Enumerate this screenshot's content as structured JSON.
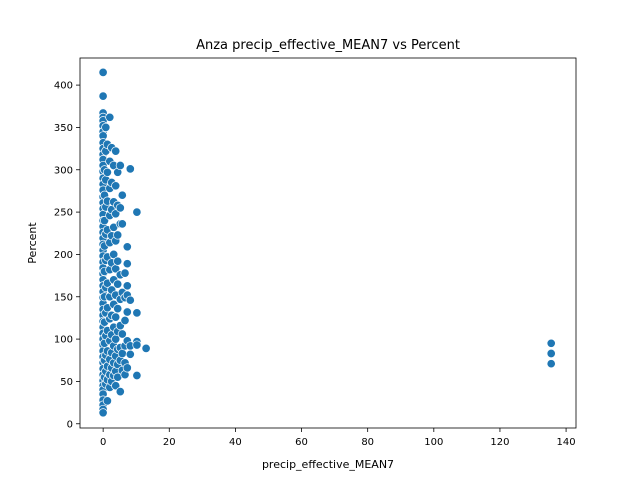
{
  "chart_data": {
    "type": "scatter",
    "title": "Anza precip_effective_MEAN7 vs Percent",
    "xlabel": "precip_effective_MEAN7",
    "ylabel": "Percent",
    "xlim": [
      -7,
      143
    ],
    "ylim": [
      -5,
      432
    ],
    "xticks": [
      0,
      20,
      40,
      60,
      80,
      100,
      120,
      140
    ],
    "yticks": [
      0,
      50,
      100,
      150,
      200,
      250,
      300,
      350,
      400
    ],
    "grid": false,
    "legend": "none",
    "color": "#1f77b4",
    "points": [
      [
        0,
        415
      ],
      [
        0,
        387
      ],
      [
        0,
        367
      ],
      [
        0,
        362
      ],
      [
        0,
        358
      ],
      [
        0,
        352
      ],
      [
        0,
        345
      ],
      [
        0,
        340
      ],
      [
        0,
        332
      ],
      [
        0,
        325
      ],
      [
        0,
        318
      ],
      [
        0,
        312
      ],
      [
        0,
        305
      ],
      [
        0,
        298
      ],
      [
        0,
        290
      ],
      [
        0,
        283
      ],
      [
        0,
        276
      ],
      [
        0,
        268
      ],
      [
        0,
        261
      ],
      [
        0,
        254
      ],
      [
        0,
        247
      ],
      [
        0,
        240
      ],
      [
        0,
        233
      ],
      [
        0,
        226
      ],
      [
        0,
        219
      ],
      [
        0,
        212
      ],
      [
        0,
        205
      ],
      [
        0,
        198
      ],
      [
        0,
        191
      ],
      [
        0,
        184
      ],
      [
        0,
        177
      ],
      [
        0,
        170
      ],
      [
        0,
        163
      ],
      [
        0,
        156
      ],
      [
        0,
        149
      ],
      [
        0,
        142
      ],
      [
        0,
        135
      ],
      [
        0,
        128
      ],
      [
        0,
        121
      ],
      [
        0,
        114
      ],
      [
        0,
        107
      ],
      [
        0,
        100
      ],
      [
        0,
        93
      ],
      [
        0,
        86
      ],
      [
        0,
        79
      ],
      [
        0,
        72
      ],
      [
        0,
        65
      ],
      [
        0,
        58
      ],
      [
        0,
        51
      ],
      [
        0,
        45
      ],
      [
        0,
        40
      ],
      [
        0,
        35
      ],
      [
        0,
        28
      ],
      [
        0,
        22
      ],
      [
        0,
        17
      ],
      [
        0,
        13
      ],
      [
        0.4,
        300
      ],
      [
        0.4,
        270
      ],
      [
        0.4,
        240
      ],
      [
        0.4,
        210
      ],
      [
        0.4,
        180
      ],
      [
        0.4,
        150
      ],
      [
        0.4,
        120
      ],
      [
        0.4,
        95
      ],
      [
        0.4,
        75
      ],
      [
        0.4,
        55
      ],
      [
        0.8,
        350
      ],
      [
        0.8,
        322
      ],
      [
        0.8,
        288
      ],
      [
        0.8,
        256
      ],
      [
        0.8,
        224
      ],
      [
        0.8,
        193
      ],
      [
        0.8,
        161
      ],
      [
        0.8,
        131
      ],
      [
        0.8,
        104
      ],
      [
        0.8,
        81
      ],
      [
        0.8,
        62
      ],
      [
        0.8,
        47
      ],
      [
        1.3,
        330
      ],
      [
        1.3,
        297
      ],
      [
        1.3,
        263
      ],
      [
        1.3,
        229
      ],
      [
        1.3,
        197
      ],
      [
        1.3,
        166
      ],
      [
        1.3,
        137
      ],
      [
        1.3,
        110
      ],
      [
        1.3,
        86
      ],
      [
        1.3,
        68
      ],
      [
        1.3,
        52
      ],
      [
        1.3,
        27
      ],
      [
        2,
        362
      ],
      [
        2,
        310
      ],
      [
        2,
        278
      ],
      [
        2,
        246
      ],
      [
        2,
        214
      ],
      [
        2,
        182
      ],
      [
        2,
        150
      ],
      [
        2,
        124
      ],
      [
        2,
        98
      ],
      [
        2,
        76
      ],
      [
        2,
        58
      ],
      [
        2,
        43
      ],
      [
        2.6,
        326
      ],
      [
        2.6,
        285
      ],
      [
        2.6,
        253
      ],
      [
        2.6,
        222
      ],
      [
        2.6,
        190
      ],
      [
        2.6,
        158
      ],
      [
        2.6,
        128
      ],
      [
        2.6,
        105
      ],
      [
        2.6,
        84
      ],
      [
        2.6,
        66
      ],
      [
        2.6,
        50
      ],
      [
        3.2,
        305
      ],
      [
        3.2,
        262
      ],
      [
        3.2,
        232
      ],
      [
        3.2,
        200
      ],
      [
        3.2,
        170
      ],
      [
        3.2,
        141
      ],
      [
        3.2,
        114
      ],
      [
        3.2,
        92
      ],
      [
        3.2,
        72
      ],
      [
        3.2,
        57
      ],
      [
        3.8,
        322
      ],
      [
        3.8,
        281
      ],
      [
        3.8,
        248
      ],
      [
        3.8,
        216
      ],
      [
        3.8,
        183
      ],
      [
        3.8,
        152
      ],
      [
        3.8,
        126
      ],
      [
        3.8,
        100
      ],
      [
        3.8,
        80
      ],
      [
        3.8,
        62
      ],
      [
        3.8,
        45
      ],
      [
        4.4,
        297
      ],
      [
        4.4,
        258
      ],
      [
        4.4,
        223
      ],
      [
        4.4,
        192
      ],
      [
        4.4,
        165
      ],
      [
        4.4,
        136
      ],
      [
        4.4,
        109
      ],
      [
        4.4,
        88
      ],
      [
        4.4,
        70
      ],
      [
        4.4,
        55
      ],
      [
        5.2,
        305
      ],
      [
        5.2,
        255
      ],
      [
        5.2,
        236
      ],
      [
        5.2,
        176
      ],
      [
        5.2,
        147
      ],
      [
        5.2,
        116
      ],
      [
        5.2,
        90
      ],
      [
        5.2,
        75
      ],
      [
        5.2,
        38
      ],
      [
        5.8,
        270
      ],
      [
        5.8,
        236
      ],
      [
        5.8,
        155
      ],
      [
        5.8,
        106
      ],
      [
        5.8,
        83
      ],
      [
        5.8,
        63
      ],
      [
        6.6,
        178
      ],
      [
        6.6,
        149
      ],
      [
        6.6,
        122
      ],
      [
        6.6,
        92
      ],
      [
        6.6,
        72
      ],
      [
        6.6,
        58
      ],
      [
        7.3,
        209
      ],
      [
        7.3,
        189
      ],
      [
        7.3,
        163
      ],
      [
        7.3,
        152
      ],
      [
        7.3,
        132
      ],
      [
        7.3,
        98
      ],
      [
        7.3,
        66
      ],
      [
        8.2,
        301
      ],
      [
        8.2,
        146
      ],
      [
        8.2,
        92
      ],
      [
        8.2,
        82
      ],
      [
        10.2,
        250
      ],
      [
        10.2,
        131
      ],
      [
        10.2,
        97
      ],
      [
        10.2,
        93
      ],
      [
        10.2,
        57
      ],
      [
        13,
        89
      ],
      [
        135.5,
        95
      ],
      [
        135.5,
        83
      ],
      [
        135.5,
        71
      ]
    ]
  }
}
